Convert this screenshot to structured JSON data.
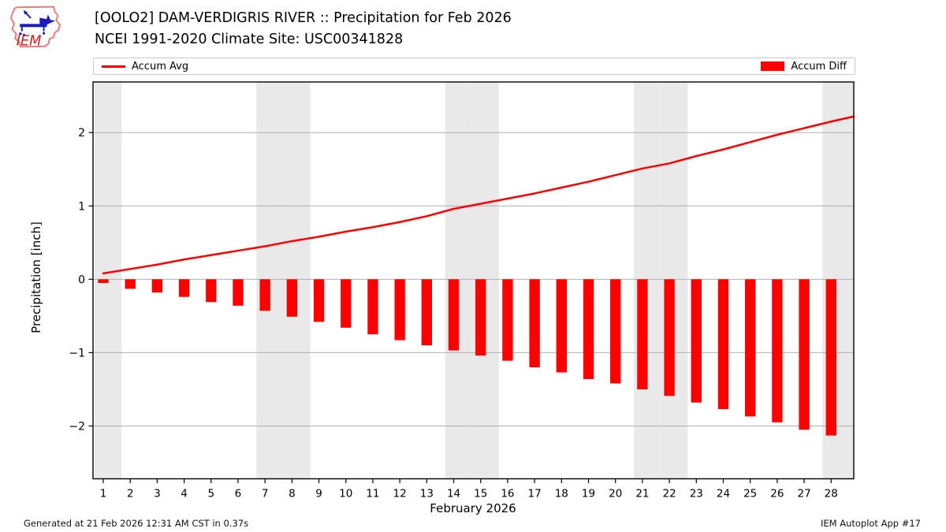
{
  "header": {
    "title_line1": "[OOLO2] DAM-VERDIGRIS RIVER :: Precipitation for Feb 2026",
    "title_line2": "NCEI 1991-2020 Climate Site: USC00341828",
    "logo_text": "IEM"
  },
  "legend": {
    "avg_label": "Accum Avg",
    "diff_label": "Accum Diff"
  },
  "footer": {
    "left": "Generated at 21 Feb 2026 12:31 AM CST in 0.37s",
    "right": "IEM Autoplot App #17"
  },
  "colors": {
    "accent_red": "#ff0000",
    "grid": "#b0b0b0",
    "weekend_band": "#e9e9e9",
    "axis_frame": "#000000",
    "logo_outline": "#e87b7b",
    "logo_blue": "#1a1ab8",
    "logo_red": "#cc2222"
  },
  "chart_data": {
    "type": "bar+line",
    "title": "[OOLO2] DAM-VERDIGRIS RIVER :: Precipitation for Feb 2026",
    "subtitle": "NCEI 1991-2020 Climate Site: USC00341828",
    "xlabel": "February 2026",
    "ylabel": "Precipitation [inch]",
    "x": [
      1,
      2,
      3,
      4,
      5,
      6,
      7,
      8,
      9,
      10,
      11,
      12,
      13,
      14,
      15,
      16,
      17,
      18,
      19,
      20,
      21,
      22,
      23,
      24,
      25,
      26,
      27,
      28
    ],
    "series": [
      {
        "name": "Accum Avg",
        "type": "line",
        "color": "#ff0000",
        "values": [
          0.08,
          0.14,
          0.2,
          0.27,
          0.33,
          0.39,
          0.45,
          0.52,
          0.58,
          0.65,
          0.71,
          0.78,
          0.86,
          0.96,
          1.03,
          1.1,
          1.17,
          1.25,
          1.33,
          1.42,
          1.51,
          1.58,
          1.68,
          1.77,
          1.87,
          1.97,
          2.06,
          2.15
        ]
      },
      {
        "name": "Accum Diff",
        "type": "bar",
        "color": "#ff0000",
        "values": [
          -0.05,
          -0.13,
          -0.18,
          -0.24,
          -0.31,
          -0.36,
          -0.43,
          -0.51,
          -0.58,
          -0.66,
          -0.75,
          -0.83,
          -0.9,
          -0.97,
          -1.04,
          -1.11,
          -1.2,
          -1.27,
          -1.36,
          -1.42,
          -1.5,
          -1.59,
          -1.68,
          -1.77,
          -1.87,
          -1.95,
          -2.05,
          -2.13
        ]
      }
    ],
    "line_value_at_right_edge": 2.22,
    "xlim": [
      0.62,
      28.84
    ],
    "ylim": [
      -2.72,
      2.69
    ],
    "y_ticks": [
      -2,
      -1,
      0,
      1,
      2
    ],
    "weekend_days": [
      1,
      7,
      8,
      14,
      15,
      21,
      22,
      28
    ],
    "grid": "horizontal",
    "legend_position": "top"
  }
}
